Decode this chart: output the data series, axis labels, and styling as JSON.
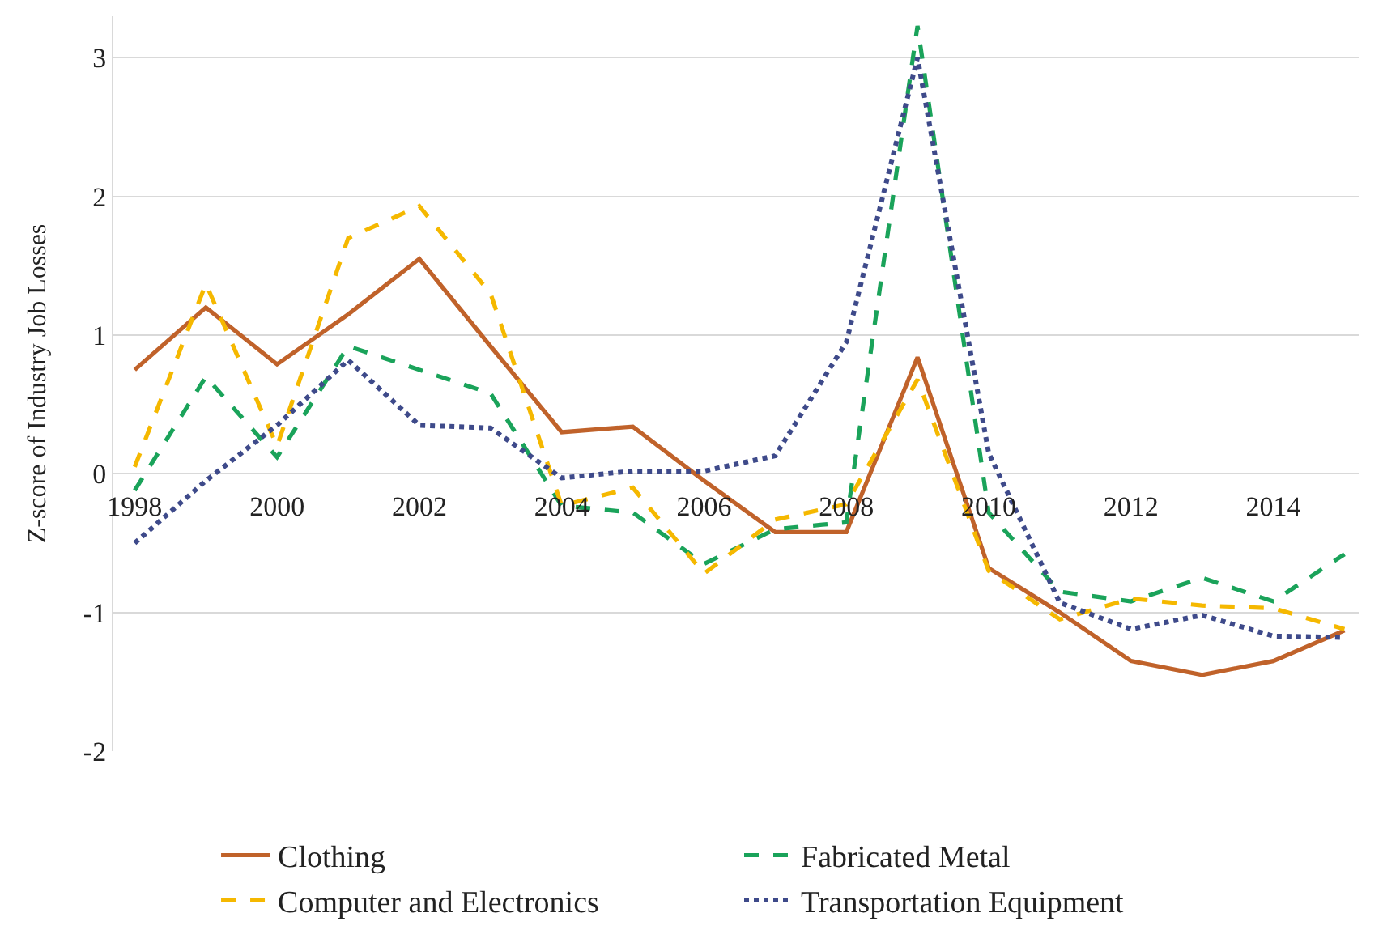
{
  "chart_data": {
    "type": "line",
    "ylabel": "Z-score of Industry Job Losses",
    "x": [
      1998,
      1999,
      2000,
      2001,
      2002,
      2003,
      2004,
      2005,
      2006,
      2007,
      2008,
      2009,
      2010,
      2011,
      2012,
      2013,
      2014,
      2015
    ],
    "series": [
      {
        "name": "Clothing",
        "color": "#c0622a",
        "line_style": "solid",
        "values": [
          0.75,
          1.2,
          0.79,
          1.15,
          1.55,
          0.92,
          0.3,
          0.34,
          -0.05,
          -0.42,
          -0.42,
          0.84,
          -0.68,
          -1.0,
          -1.35,
          -1.45,
          -1.35,
          -1.13
        ]
      },
      {
        "name": "Fabricated Metal",
        "color": "#1aa35a",
        "line_style": "dashed",
        "values": [
          -0.12,
          0.7,
          0.12,
          0.92,
          0.75,
          0.58,
          -0.23,
          -0.28,
          -0.65,
          -0.4,
          -0.35,
          3.23,
          -0.28,
          -0.85,
          -0.92,
          -0.75,
          -0.92,
          -0.58
        ]
      },
      {
        "name": "Computer and Electronics",
        "color": "#f5b800",
        "line_style": "dashed",
        "values": [
          0.05,
          1.37,
          0.2,
          1.7,
          1.93,
          1.3,
          -0.23,
          -0.1,
          -0.72,
          -0.33,
          -0.22,
          0.68,
          -0.7,
          -1.05,
          -0.9,
          -0.95,
          -0.97,
          -1.12
        ]
      },
      {
        "name": "Transportation Equipment",
        "color": "#3e4a8a",
        "line_style": "dotted",
        "values": [
          -0.5,
          -0.05,
          0.35,
          0.82,
          0.35,
          0.33,
          -0.03,
          0.02,
          0.02,
          0.13,
          0.95,
          3.0,
          0.15,
          -0.93,
          -1.12,
          -1.02,
          -1.17,
          -1.18
        ]
      }
    ],
    "xlim": [
      1997.7,
      2015.2
    ],
    "xticks": [
      1998,
      2000,
      2002,
      2004,
      2006,
      2008,
      2010,
      2012,
      2014
    ],
    "ylim": [
      -2,
      3.3
    ],
    "yticks": [
      -2,
      -1,
      0,
      1,
      2,
      3
    ],
    "grid": "y",
    "legend": "bottom",
    "marker": "none"
  }
}
